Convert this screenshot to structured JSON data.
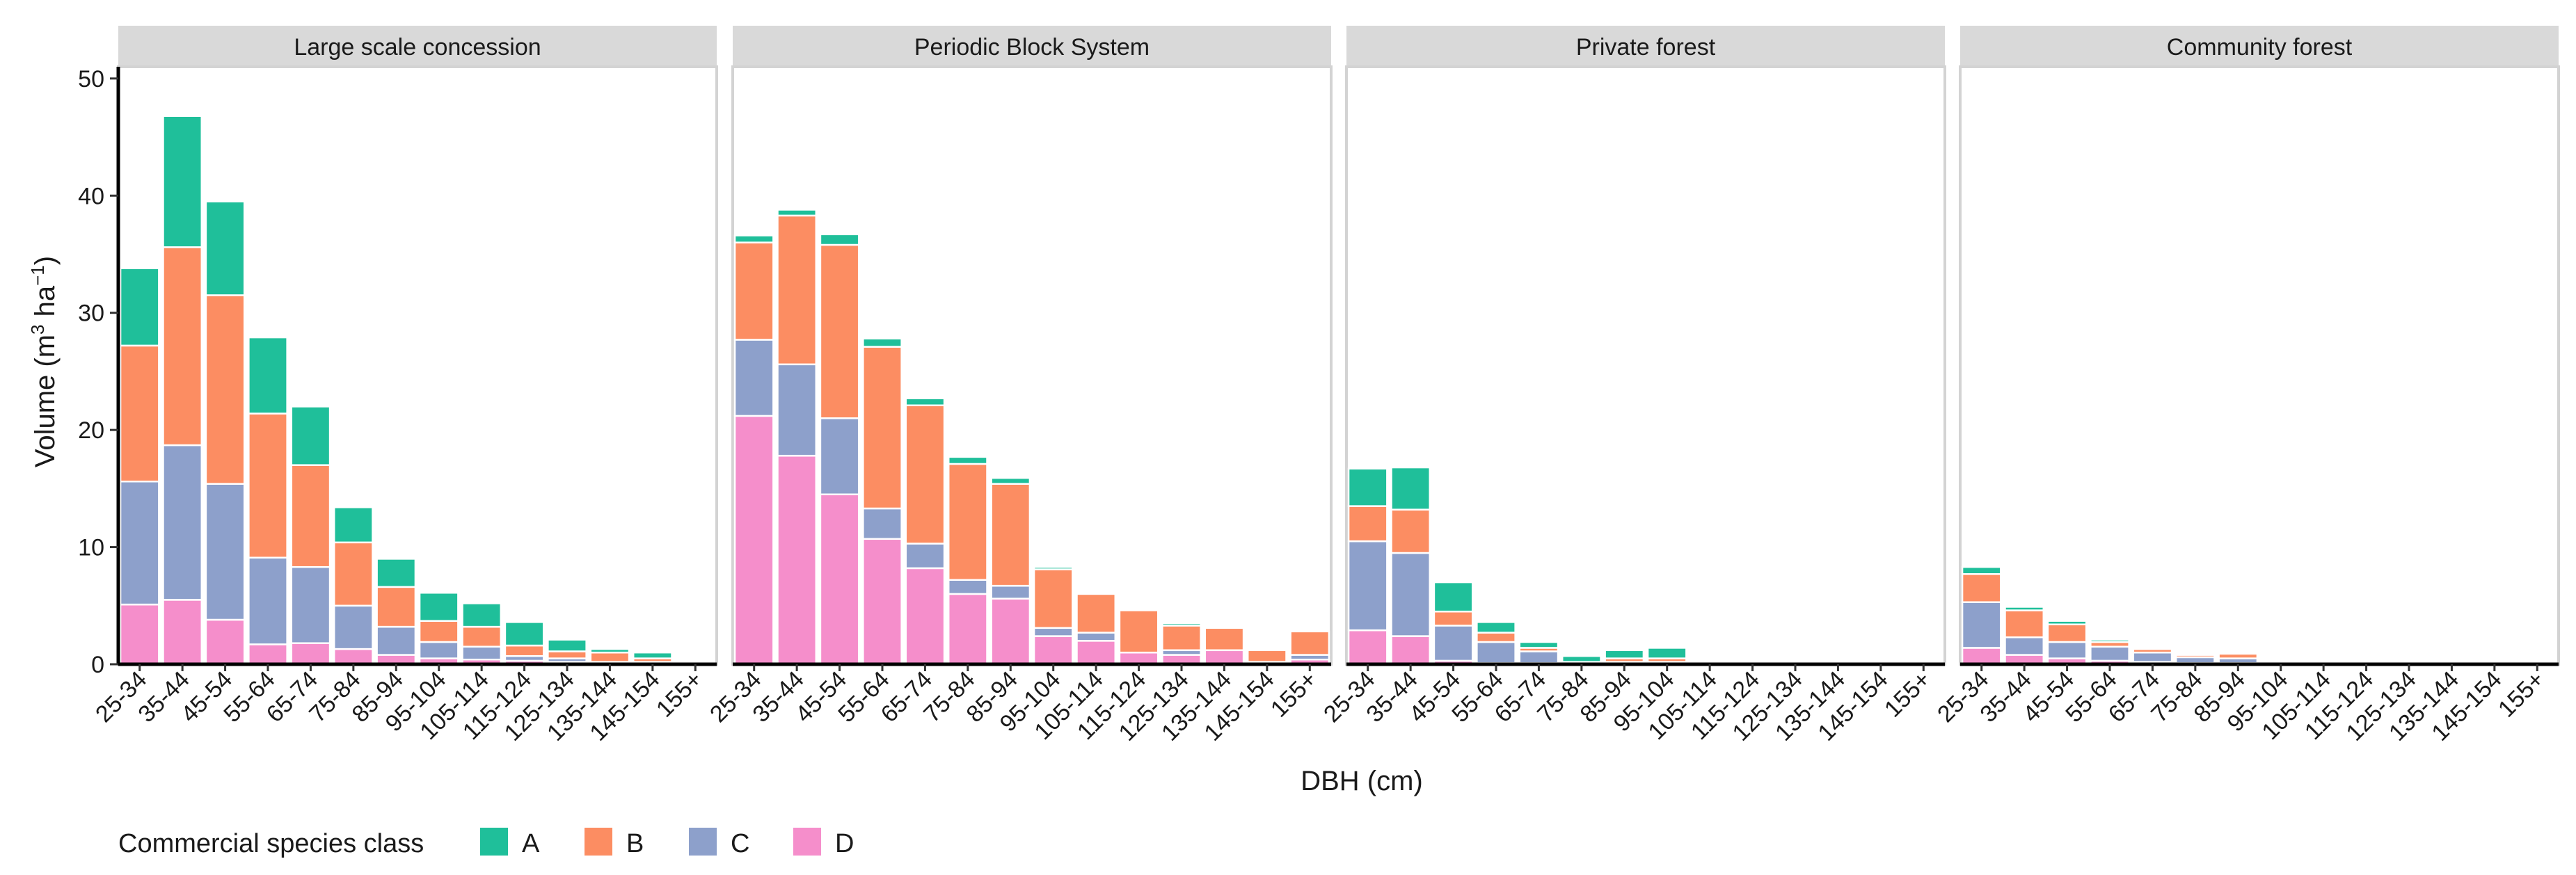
{
  "chart_data": {
    "type": "bar",
    "stacked": true,
    "facets": [
      "Large scale concession",
      "Periodic Block System",
      "Private forest",
      "Community forest"
    ],
    "categories": [
      "25-34",
      "35-44",
      "45-54",
      "55-64",
      "65-74",
      "75-84",
      "85-94",
      "95-104",
      "105-114",
      "115-124",
      "125-134",
      "135-144",
      "145-154",
      "155+"
    ],
    "xlabel": "DBH (cm)",
    "ylabel": {
      "base": "Volume (m",
      "sup1": "3",
      "mid": " ha",
      "sup2": "−1",
      "end": ")"
    },
    "ylim": [
      0,
      51
    ],
    "yticks": [
      0,
      10,
      20,
      30,
      40,
      50
    ],
    "legend": {
      "title": "Commercial species class",
      "position": "bottom-left",
      "entries": [
        "A",
        "B",
        "C",
        "D"
      ]
    },
    "colors": {
      "A": "#1fbf9a",
      "B": "#fc8d62",
      "C": "#8da0cb",
      "D": "#f58ecb"
    },
    "panels": [
      {
        "name": "Large scale concession",
        "series": [
          {
            "name": "D",
            "values": [
              5.1,
              5.5,
              3.8,
              1.7,
              1.8,
              1.3,
              0.8,
              0.5,
              0.4,
              0.3,
              0.2,
              0.1,
              0.1,
              0
            ]
          },
          {
            "name": "C",
            "values": [
              10.5,
              13.2,
              11.6,
              7.4,
              6.5,
              3.7,
              2.4,
              1.4,
              1.1,
              0.4,
              0.3,
              0.1,
              0.1,
              0
            ]
          },
          {
            "name": "B",
            "values": [
              11.6,
              16.9,
              16.1,
              12.3,
              8.7,
              5.4,
              3.4,
              1.8,
              1.7,
              0.9,
              0.6,
              0.8,
              0.3,
              0
            ]
          },
          {
            "name": "A",
            "values": [
              6.6,
              11.2,
              8.0,
              6.5,
              5.0,
              3.0,
              2.4,
              2.4,
              2.0,
              2.0,
              1.0,
              0.3,
              0.5,
              0
            ]
          }
        ]
      },
      {
        "name": "Periodic Block System",
        "series": [
          {
            "name": "D",
            "values": [
              21.2,
              17.8,
              14.5,
              10.7,
              8.2,
              6.0,
              5.6,
              2.4,
              2.0,
              1.0,
              0.8,
              1.2,
              0.2,
              0.4
            ]
          },
          {
            "name": "C",
            "values": [
              6.5,
              7.8,
              6.5,
              2.6,
              2.1,
              1.2,
              1.1,
              0.7,
              0.7,
              0,
              0.4,
              0,
              0,
              0.4
            ]
          },
          {
            "name": "B",
            "values": [
              8.3,
              12.7,
              14.8,
              13.8,
              11.8,
              9.9,
              8.7,
              5.0,
              3.3,
              3.6,
              2.1,
              1.9,
              1.0,
              2.0
            ]
          },
          {
            "name": "A",
            "values": [
              0.6,
              0.5,
              0.9,
              0.7,
              0.6,
              0.6,
              0.5,
              0.2,
              0,
              0,
              0.2,
              0,
              0,
              0
            ]
          }
        ]
      },
      {
        "name": "Private forest",
        "series": [
          {
            "name": "D",
            "values": [
              2.9,
              2.4,
              0.3,
              0.1,
              0.1,
              0,
              0,
              0,
              0,
              0,
              0,
              0,
              0,
              0
            ]
          },
          {
            "name": "C",
            "values": [
              7.6,
              7.1,
              3.0,
              1.8,
              1.0,
              0.1,
              0.2,
              0.2,
              0,
              0,
              0,
              0,
              0,
              0
            ]
          },
          {
            "name": "B",
            "values": [
              3.0,
              3.7,
              1.2,
              0.8,
              0.3,
              0.1,
              0.3,
              0.3,
              0,
              0,
              0,
              0,
              0,
              0
            ]
          },
          {
            "name": "A",
            "values": [
              3.2,
              3.6,
              2.5,
              0.9,
              0.5,
              0.5,
              0.7,
              0.9,
              0,
              0,
              0,
              0,
              0,
              0
            ]
          }
        ]
      },
      {
        "name": "Community forest",
        "series": [
          {
            "name": "D",
            "values": [
              1.4,
              0.8,
              0.5,
              0.3,
              0.2,
              0.1,
              0.1,
              0,
              0,
              0,
              0,
              0,
              0,
              0
            ]
          },
          {
            "name": "C",
            "values": [
              3.9,
              1.5,
              1.4,
              1.2,
              0.8,
              0.5,
              0.4,
              0.1,
              0,
              0,
              0,
              0,
              0,
              0
            ]
          },
          {
            "name": "B",
            "values": [
              2.4,
              2.3,
              1.5,
              0.4,
              0.3,
              0.2,
              0.4,
              0,
              0,
              0,
              0,
              0,
              0,
              0
            ]
          },
          {
            "name": "A",
            "values": [
              0.6,
              0.3,
              0.3,
              0.2,
              0.1,
              0.1,
              0.1,
              0.1,
              0,
              0,
              0,
              0,
              0,
              0
            ]
          }
        ]
      }
    ]
  }
}
